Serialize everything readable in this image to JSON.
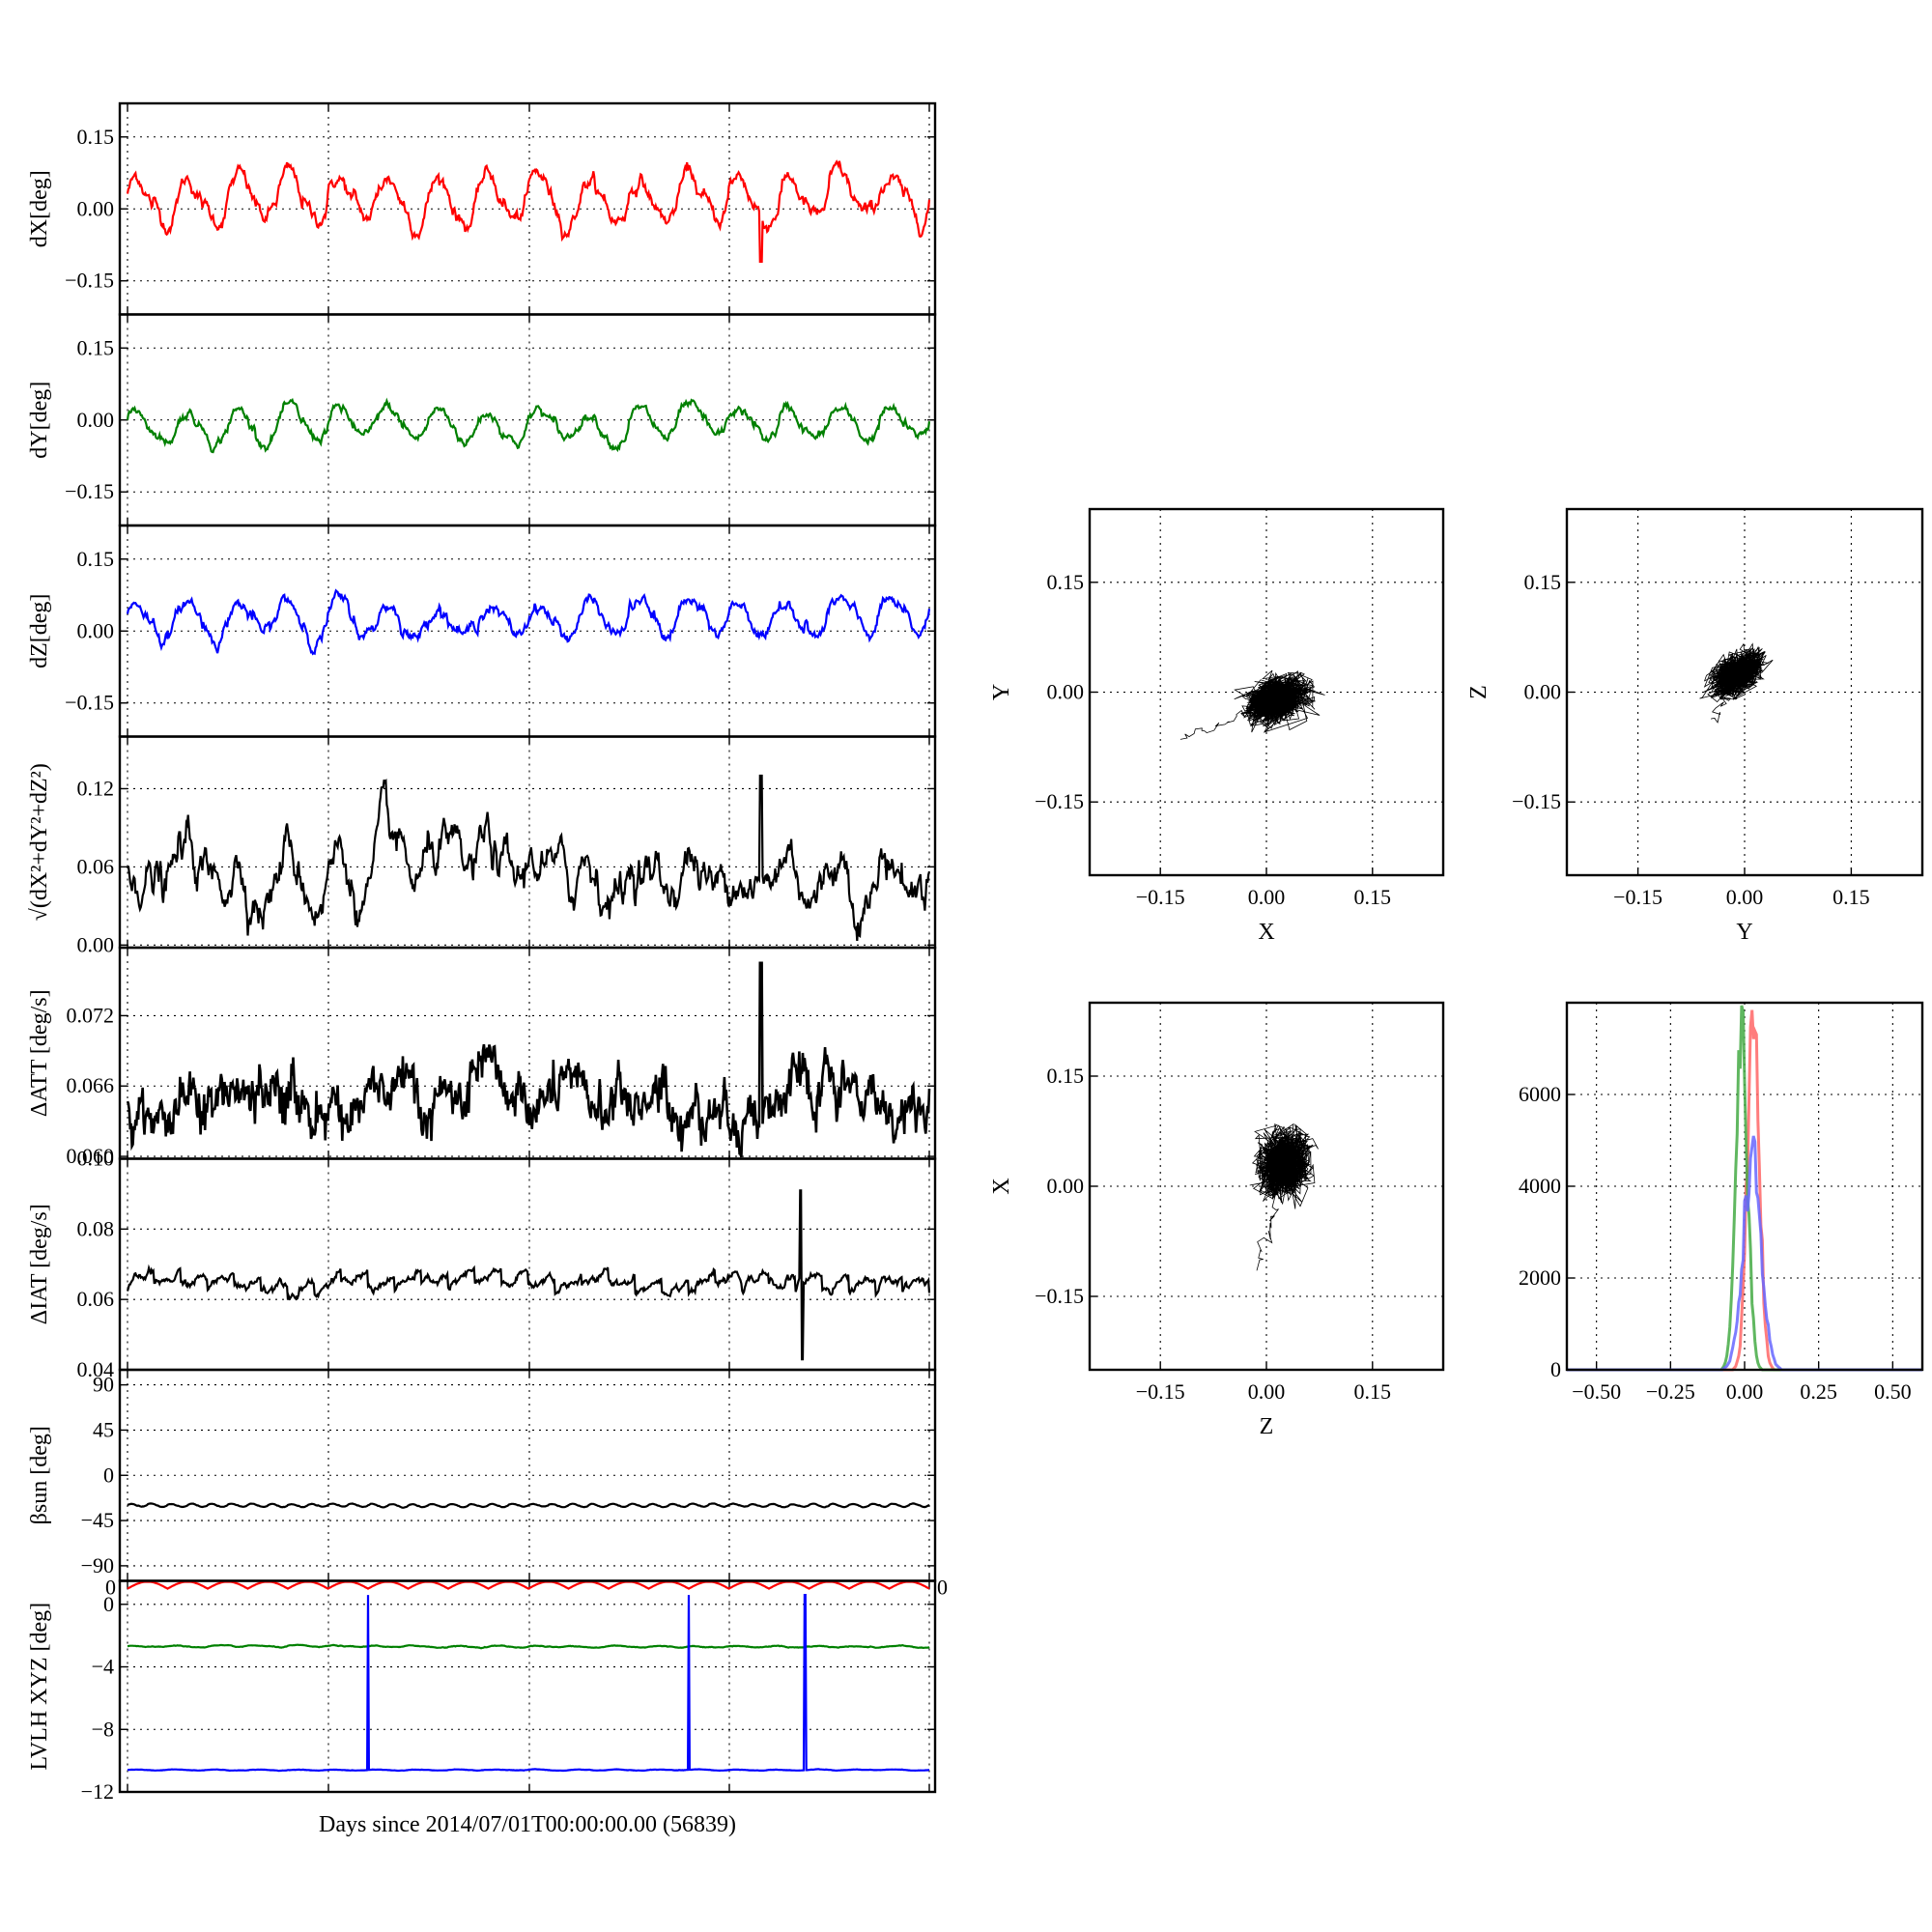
{
  "figure": {
    "xlabel": "Days since 2014/07/01T00:00:00.00 (56839)"
  },
  "chart_data": [
    {
      "type": "line",
      "panel": "dX",
      "ylabel": "dX[deg]",
      "ylim": [
        -0.22,
        0.22
      ],
      "yticks": [
        -0.15,
        0.0,
        0.15
      ],
      "ytick_labels": [
        "−0.15",
        "0.00",
        "0.15"
      ],
      "grid": true,
      "series": [
        {
          "color": "#ff0000",
          "mean": 0.02,
          "amplitude": 0.045,
          "noise": 0.012,
          "cycles": 16,
          "spike": {
            "x": 0.79,
            "value": -0.11
          }
        }
      ]
    },
    {
      "type": "line",
      "panel": "dY",
      "ylabel": "dY[deg]",
      "ylim": [
        -0.22,
        0.22
      ],
      "yticks": [
        -0.15,
        0.0,
        0.15
      ],
      "ytick_labels": [
        "−0.15",
        "0.00",
        "0.15"
      ],
      "grid": true,
      "series": [
        {
          "color": "#008000",
          "mean": -0.01,
          "amplitude": 0.03,
          "noise": 0.008,
          "cycles": 16
        }
      ]
    },
    {
      "type": "line",
      "panel": "dZ",
      "ylabel": "dZ[deg]",
      "ylim": [
        -0.22,
        0.22
      ],
      "yticks": [
        -0.15,
        0.0,
        0.15
      ],
      "ytick_labels": [
        "−0.15",
        "0.00",
        "0.15"
      ],
      "grid": true,
      "series": [
        {
          "color": "#0000ff",
          "mean": 0.025,
          "amplitude": 0.035,
          "noise": 0.01,
          "cycles": 16
        }
      ]
    },
    {
      "type": "line",
      "panel": "dR",
      "ylabel": "√(dX²+dY²+dZ²)",
      "ylim": [
        -0.002,
        0.16
      ],
      "yticks": [
        0.0,
        0.06,
        0.12
      ],
      "ytick_labels": [
        "0.00",
        "0.06",
        "0.12"
      ],
      "grid": true,
      "series": [
        {
          "color": "#000000",
          "mean": 0.055,
          "amplitude": 0.015,
          "noise": 0.012,
          "cycles": 16,
          "spike": {
            "x": 0.79,
            "value": 0.13
          }
        }
      ]
    },
    {
      "type": "line",
      "panel": "dATT",
      "ylabel": "ΔATT [deg/s]",
      "ylim": [
        0.0598,
        0.0778
      ],
      "yticks": [
        0.06,
        0.066,
        0.072
      ],
      "ytick_labels": [
        "0.060",
        "0.066",
        "0.072"
      ],
      "grid": true,
      "series": [
        {
          "color": "#000000",
          "mean": 0.0645,
          "amplitude": 0.0,
          "noise": 0.0012,
          "cycles": 0,
          "spike": {
            "x": 0.79,
            "value": 0.0765
          }
        }
      ]
    },
    {
      "type": "line",
      "panel": "dIAT",
      "ylabel": "ΔIAT [deg/s]",
      "ylim": [
        0.04,
        0.1
      ],
      "yticks": [
        0.04,
        0.06,
        0.08,
        0.1
      ],
      "ytick_labels": [
        "0.04",
        "0.06",
        "0.08",
        "0.10"
      ],
      "grid": true,
      "series": [
        {
          "color": "#000000",
          "mean": 0.065,
          "amplitude": 0.002,
          "noise": 0.001,
          "cycles": 30,
          "spike": {
            "x": 0.84,
            "value": 0.091,
            "low": 0.043
          }
        }
      ]
    },
    {
      "type": "line",
      "panel": "beta_sun",
      "ylabel": "βsun [deg]",
      "ylim": [
        -105,
        105
      ],
      "yticks": [
        -90,
        -45,
        0,
        45,
        90
      ],
      "ytick_labels": [
        "−90",
        "−45",
        "0",
        "45",
        "90"
      ],
      "grid": true,
      "series": [
        {
          "color": "#000000",
          "mean": -30,
          "amplitude": 1.5,
          "noise": 0.2,
          "cycles": 40
        }
      ]
    },
    {
      "type": "line",
      "panel": "LVLH",
      "ylabel": "LVLH XYZ [deg]",
      "ylim": [
        -12,
        1.5
      ],
      "yticks": [
        -12,
        -8,
        -4,
        0
      ],
      "ytick_labels": [
        "−12",
        "−8",
        "−4",
        "0"
      ],
      "top_tick_labels": [
        "0",
        "0"
      ],
      "grid": true,
      "series": [
        {
          "color": "#ff0000",
          "mean": 1.0,
          "amplitude": 0.45,
          "noise": 0.0,
          "cycles": 20
        },
        {
          "color": "#008000",
          "mean": -2.7,
          "amplitude": 0.05,
          "noise": 0.02,
          "cycles": 20
        },
        {
          "color": "#0000ff",
          "mean": -10.6,
          "amplitude": 0.03,
          "noise": 0.01,
          "cycles": 20,
          "spikes_to": 0.6,
          "spike_x": [
            0.3,
            0.7,
            0.845
          ]
        }
      ]
    },
    {
      "type": "scatter",
      "panel": "XY",
      "xlabel": "X",
      "ylabel": "Y",
      "xlim": [
        -0.25,
        0.25
      ],
      "ylim": [
        -0.25,
        0.25
      ],
      "ticks": [
        -0.15,
        0.0,
        0.15
      ],
      "tick_labels": [
        "−0.15",
        "0.00",
        "0.15"
      ],
      "grid": true,
      "cloud": {
        "cx": 0.015,
        "cy": -0.01,
        "sx": 0.04,
        "sy": 0.025,
        "rot": 0.35,
        "tail": [
          -0.12,
          -0.065
        ]
      }
    },
    {
      "type": "scatter",
      "panel": "YZ",
      "xlabel": "Y",
      "ylabel": "Z",
      "xlim": [
        -0.25,
        0.25
      ],
      "ylim": [
        -0.25,
        0.25
      ],
      "ticks": [
        -0.15,
        0.0,
        0.15
      ],
      "tick_labels": [
        "−0.15",
        "0.00",
        "0.15"
      ],
      "grid": true,
      "cloud": {
        "cx": -0.01,
        "cy": 0.025,
        "sx": 0.035,
        "sy": 0.02,
        "rot": 0.6,
        "tail": [
          -0.045,
          -0.04
        ]
      }
    },
    {
      "type": "scatter",
      "panel": "ZX",
      "xlabel": "Z",
      "ylabel": "X",
      "xlim": [
        -0.25,
        0.25
      ],
      "ylim": [
        -0.25,
        0.25
      ],
      "ticks": [
        -0.15,
        0.0,
        0.15
      ],
      "tick_labels": [
        "−0.15",
        "0.00",
        "0.15"
      ],
      "grid": true,
      "cloud": {
        "cx": 0.025,
        "cy": 0.03,
        "sx": 0.03,
        "sy": 0.04,
        "rot": -0.2,
        "tail": [
          -0.01,
          -0.11
        ]
      }
    },
    {
      "type": "histogram",
      "panel": "hist",
      "xlim": [
        -0.6,
        0.6
      ],
      "ylim": [
        0,
        8000
      ],
      "xticks": [
        -0.5,
        -0.25,
        0.0,
        0.25,
        0.5
      ],
      "xtick_labels": [
        "−0.50",
        "−0.25",
        "0.00",
        "0.25",
        "0.50"
      ],
      "yticks": [
        0,
        2000,
        4000,
        6000
      ],
      "ytick_labels": [
        "0",
        "2000",
        "4000",
        "6000"
      ],
      "grid": true,
      "series": [
        {
          "color": "#ff6666",
          "center": 0.03,
          "width": 0.02,
          "peak": 7600
        },
        {
          "color": "#44aa44",
          "center": -0.01,
          "width": 0.02,
          "peak": 7200
        },
        {
          "color": "#6666ff",
          "center": 0.025,
          "width": 0.03,
          "peak": 4600
        }
      ]
    }
  ]
}
